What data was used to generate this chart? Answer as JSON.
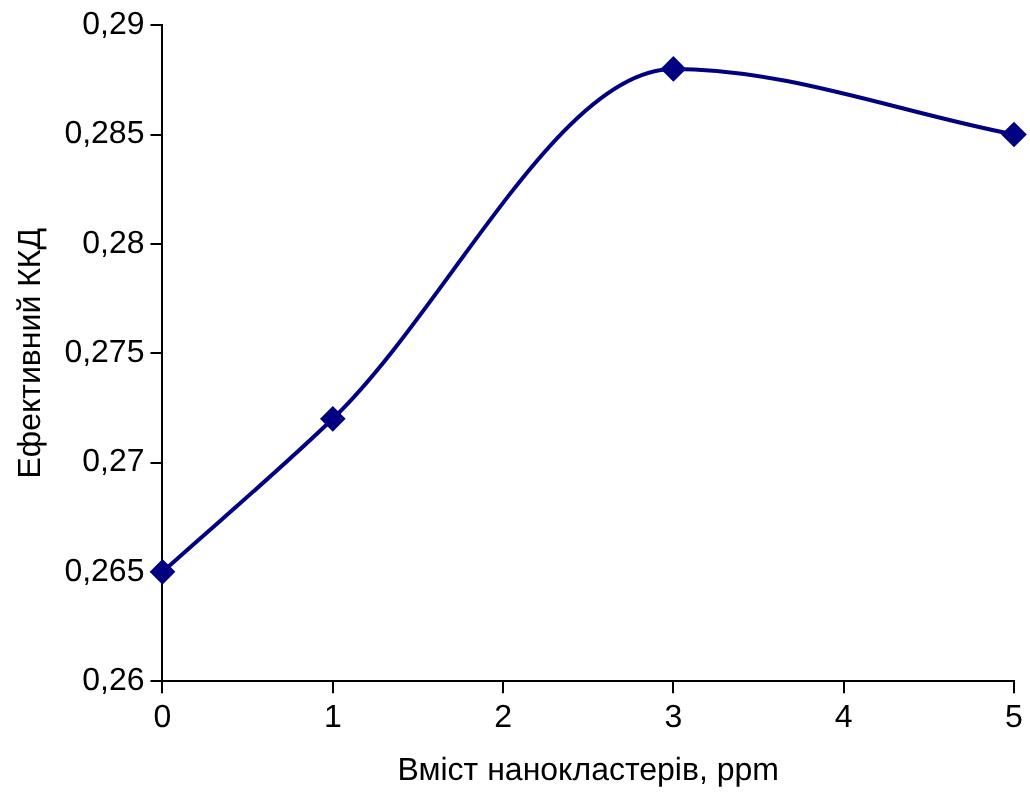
{
  "chart_data": {
    "type": "line",
    "xlabel": "Вміст нанокластерів, ppm",
    "ylabel": "Ефективний ККД",
    "x": [
      0,
      1,
      3,
      5
    ],
    "series": [
      {
        "color": "#000080",
        "values": [
          0.265,
          0.272,
          0.288,
          0.285
        ]
      }
    ],
    "xlim": [
      0,
      5
    ],
    "xticks": [
      0,
      1,
      2,
      3,
      4,
      5
    ],
    "ylim": [
      0.26,
      0.29
    ],
    "yticks": [
      {
        "value": 0.26,
        "label": "0,26"
      },
      {
        "value": 0.265,
        "label": "0,265"
      },
      {
        "value": 0.27,
        "label": "0,27"
      },
      {
        "value": 0.275,
        "label": "0,275"
      },
      {
        "value": 0.28,
        "label": "0,28"
      },
      {
        "value": 0.285,
        "label": "0,285"
      },
      {
        "value": 0.29,
        "label": "0,29"
      }
    ],
    "grid": false,
    "legend": false,
    "marker": "diamond",
    "line_style": "solid"
  }
}
